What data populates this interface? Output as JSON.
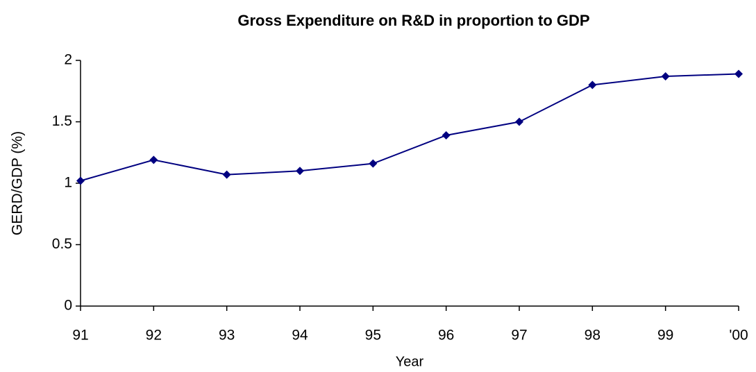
{
  "chart_data": {
    "type": "line",
    "title": "Gross Expenditure on R&D in proportion to GDP",
    "x_label": "Year",
    "y_label": "GERD/GDP (%)",
    "categories": [
      "91",
      "92",
      "93",
      "94",
      "95",
      "96",
      "97",
      "98",
      "99",
      "'00"
    ],
    "series": [
      {
        "name": "GERD/GDP",
        "color": "#000080",
        "values": [
          1.02,
          1.19,
          1.07,
          1.1,
          1.16,
          1.39,
          1.5,
          1.8,
          1.87,
          1.89
        ]
      }
    ],
    "ylim": [
      0,
      2
    ],
    "yticks": [
      0,
      0.5,
      1,
      1.5,
      2
    ],
    "grid": false
  }
}
